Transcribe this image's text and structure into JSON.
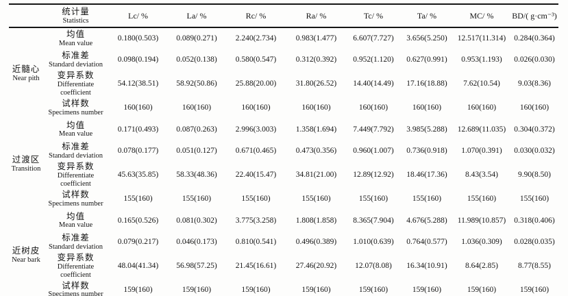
{
  "table": {
    "header": {
      "stat_label_cn": "统计量",
      "stat_label_en": "Statistics",
      "columns": [
        "Lc/ %",
        "La/ %",
        "Rc/ %",
        "Ra/ %",
        "Tc/ %",
        "Ta/ %",
        "MC/ %",
        "BD/( g·cm⁻³)"
      ]
    },
    "row_labels": [
      {
        "cn": "均值",
        "en": "Mean value"
      },
      {
        "cn": "标准差",
        "en": "Standard deviation"
      },
      {
        "cn": "变异系数",
        "en": "Differentiate coefficient"
      },
      {
        "cn": "试样数",
        "en": "Specimens number"
      }
    ],
    "groups": [
      {
        "cn": "近髓心",
        "en": "Near pith",
        "rows": [
          [
            "0.180(0.503)",
            "0.089(0.271)",
            "2.240(2.734)",
            "0.983(1.477)",
            "6.607(7.727)",
            "3.656(5.250)",
            "12.517(11.314)",
            "0.284(0.364)"
          ],
          [
            "0.098(0.194)",
            "0.052(0.138)",
            "0.580(0.547)",
            "0.312(0.392)",
            "0.952(1.120)",
            "0.627(0.991)",
            "0.953(1.193)",
            "0.026(0.030)"
          ],
          [
            "54.12(38.51)",
            "58.92(50.86)",
            "25.88(20.00)",
            "31.80(26.52)",
            "14.40(14.49)",
            "17.16(18.88)",
            "7.62(10.54)",
            "9.03(8.36)"
          ],
          [
            "160(160)",
            "160(160)",
            "160(160)",
            "160(160)",
            "160(160)",
            "160(160)",
            "160(160)",
            "160(160)"
          ]
        ]
      },
      {
        "cn": "过渡区",
        "en": "Transition",
        "rows": [
          [
            "0.171(0.493)",
            "0.087(0.263)",
            "2.996(3.003)",
            "1.358(1.694)",
            "7.449(7.792)",
            "3.985(5.288)",
            "12.689(11.035)",
            "0.304(0.372)"
          ],
          [
            "0.078(0.177)",
            "0.051(0.127)",
            "0.671(0.465)",
            "0.473(0.356)",
            "0.960(1.007)",
            "0.736(0.918)",
            "1.070(0.391)",
            "0.030(0.032)"
          ],
          [
            "45.63(35.85)",
            "58.33(48.36)",
            "22.40(15.47)",
            "34.81(21.00)",
            "12.89(12.92)",
            "18.46(17.36)",
            "8.43(3.54)",
            "9.90(8.50)"
          ],
          [
            "155(160)",
            "155(160)",
            "155(160)",
            "155(160)",
            "155(160)",
            "155(160)",
            "155(160)",
            "155(160)"
          ]
        ]
      },
      {
        "cn": "近树皮",
        "en": "Near bark",
        "rows": [
          [
            "0.165(0.526)",
            "0.081(0.302)",
            "3.775(3.258)",
            "1.808(1.858)",
            "8.365(7.904)",
            "4.676(5.288)",
            "11.989(10.857)",
            "0.318(0.406)"
          ],
          [
            "0.079(0.217)",
            "0.046(0.173)",
            "0.810(0.541)",
            "0.496(0.389)",
            "1.010(0.639)",
            "0.764(0.577)",
            "1.036(0.309)",
            "0.028(0.035)"
          ],
          [
            "48.04(41.34)",
            "56.98(57.25)",
            "21.45(16.61)",
            "27.46(20.92)",
            "12.07(8.08)",
            "16.34(10.91)",
            "8.64(2.85)",
            "8.77(8.55)"
          ],
          [
            "159(160)",
            "159(160)",
            "159(160)",
            "159(160)",
            "159(160)",
            "159(160)",
            "159(160)",
            "159(160)"
          ]
        ]
      }
    ]
  }
}
